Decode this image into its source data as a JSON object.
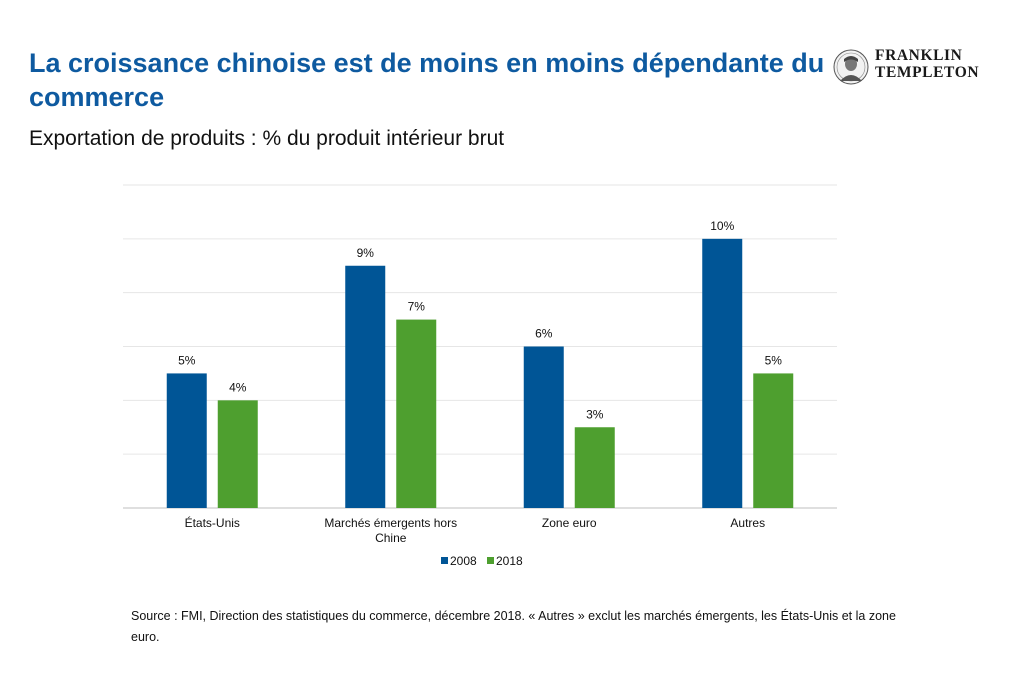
{
  "header": {
    "title": "La croissance chinoise est de moins en moins dépendante du commerce",
    "subtitle": "Exportation de produits : % du produit intérieur brut"
  },
  "logo": {
    "line1": "FRANKLIN",
    "line2": "TEMPLETON",
    "emblem": "benjamin-franklin-portrait-icon"
  },
  "colors": {
    "title": "#0e5aa0",
    "series_2008": "#005596",
    "series_2018": "#4e9f2f",
    "grid": "#e6e6e6"
  },
  "chart_data": {
    "type": "bar",
    "categories": [
      "États-Unis",
      "Marchés émergents hors Chine",
      "Zone euro",
      "Autres"
    ],
    "series": [
      {
        "name": "2008",
        "values": [
          5,
          9,
          6,
          10
        ],
        "labels": [
          "5%",
          "9%",
          "6%",
          "10%"
        ]
      },
      {
        "name": "2018",
        "values": [
          4,
          7,
          3,
          5
        ],
        "labels": [
          "4%",
          "7%",
          "3%",
          "5%"
        ]
      }
    ],
    "ylim": [
      0,
      12
    ],
    "grid": true,
    "legend": "bottom-center",
    "xlabel": "",
    "ylabel": ""
  },
  "footer": {
    "source": "Source : FMI, Direction des statistiques du commerce, décembre 2018. « Autres » exclut les marchés émergents, les États-Unis et la zone euro."
  }
}
